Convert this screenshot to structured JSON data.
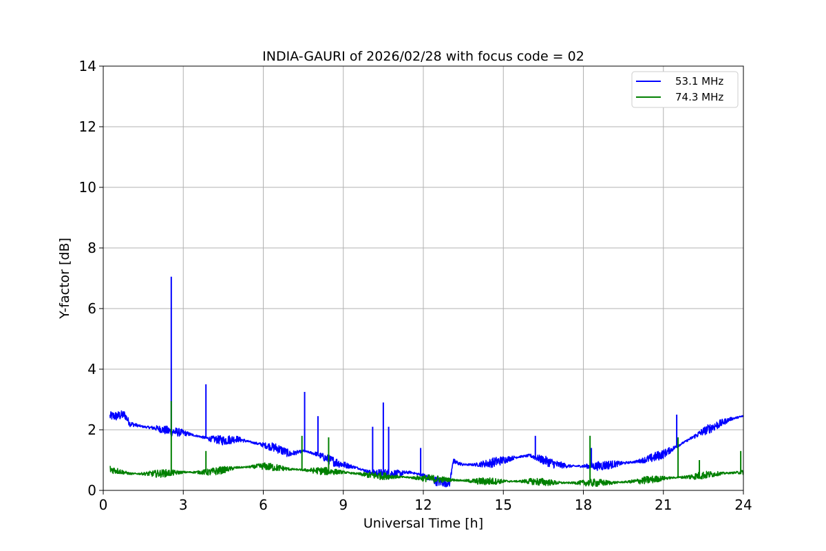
{
  "chart_data": {
    "type": "line",
    "title": "INDIA-GAURI of 2026/02/28 with focus code = 02",
    "xlabel": "Universal Time [h]",
    "ylabel": "Y-factor [dB]",
    "xlim": [
      0,
      24
    ],
    "ylim": [
      0,
      14
    ],
    "xticks": [
      "0",
      "3",
      "6",
      "9",
      "12",
      "15",
      "18",
      "21",
      "24"
    ],
    "yticks": [
      "0",
      "2",
      "4",
      "6",
      "8",
      "10",
      "12",
      "14"
    ],
    "grid": true,
    "legend_position": "top-right",
    "series": [
      {
        "name": "53.1 MHz",
        "color": "#0000ff",
        "x": [
          0.25,
          0.5,
          0.8,
          1.0,
          1.5,
          2.0,
          2.5,
          3.0,
          3.5,
          4.0,
          4.5,
          5.0,
          5.5,
          6.0,
          6.5,
          7.0,
          7.5,
          8.0,
          8.5,
          9.0,
          9.5,
          10.0,
          10.5,
          11.0,
          11.5,
          12.0,
          12.5,
          13.0,
          13.1,
          13.5,
          14.0,
          14.5,
          15.0,
          15.5,
          16.0,
          16.5,
          17.0,
          17.5,
          18.0,
          18.5,
          19.0,
          19.5,
          20.0,
          20.5,
          21.0,
          21.5,
          22.0,
          22.5,
          23.0,
          23.5,
          24.0
        ],
        "y": [
          2.45,
          2.45,
          2.5,
          2.2,
          2.1,
          2.05,
          1.95,
          1.9,
          1.8,
          1.7,
          1.65,
          1.7,
          1.6,
          1.5,
          1.4,
          1.2,
          1.3,
          1.2,
          1.0,
          0.85,
          0.75,
          0.6,
          0.55,
          0.55,
          0.6,
          0.5,
          0.3,
          0.25,
          0.95,
          0.85,
          0.85,
          0.9,
          1.0,
          1.1,
          1.15,
          1.0,
          0.85,
          0.8,
          0.8,
          0.8,
          0.85,
          0.9,
          0.95,
          1.05,
          1.2,
          1.45,
          1.7,
          1.95,
          2.15,
          2.35,
          2.45
        ],
        "spikes": [
          {
            "x": 2.55,
            "y": 7.05
          },
          {
            "x": 3.85,
            "y": 3.5
          },
          {
            "x": 7.55,
            "y": 3.25
          },
          {
            "x": 8.05,
            "y": 2.45
          },
          {
            "x": 10.1,
            "y": 2.1
          },
          {
            "x": 10.5,
            "y": 2.9
          },
          {
            "x": 10.7,
            "y": 2.1
          },
          {
            "x": 11.9,
            "y": 1.4
          },
          {
            "x": 16.2,
            "y": 1.8
          },
          {
            "x": 18.3,
            "y": 1.4
          },
          {
            "x": 21.5,
            "y": 2.5
          }
        ]
      },
      {
        "name": "74.3 MHz",
        "color": "#008000",
        "x": [
          0.25,
          1.0,
          2.0,
          3.0,
          4.0,
          5.0,
          6.0,
          7.0,
          8.0,
          9.0,
          10.0,
          11.0,
          12.0,
          13.0,
          14.0,
          15.0,
          16.0,
          17.0,
          18.0,
          19.0,
          20.0,
          21.0,
          22.0,
          23.0,
          24.0
        ],
        "y": [
          0.7,
          0.55,
          0.55,
          0.6,
          0.6,
          0.75,
          0.8,
          0.7,
          0.65,
          0.6,
          0.5,
          0.45,
          0.4,
          0.35,
          0.3,
          0.3,
          0.3,
          0.25,
          0.25,
          0.25,
          0.3,
          0.4,
          0.45,
          0.55,
          0.6
        ],
        "spikes": [
          {
            "x": 2.55,
            "y": 2.95
          },
          {
            "x": 3.85,
            "y": 1.3
          },
          {
            "x": 7.45,
            "y": 1.8
          },
          {
            "x": 8.45,
            "y": 1.75
          },
          {
            "x": 18.25,
            "y": 1.8
          },
          {
            "x": 21.55,
            "y": 1.75
          },
          {
            "x": 22.35,
            "y": 1.0
          },
          {
            "x": 23.9,
            "y": 1.3
          }
        ]
      }
    ]
  }
}
